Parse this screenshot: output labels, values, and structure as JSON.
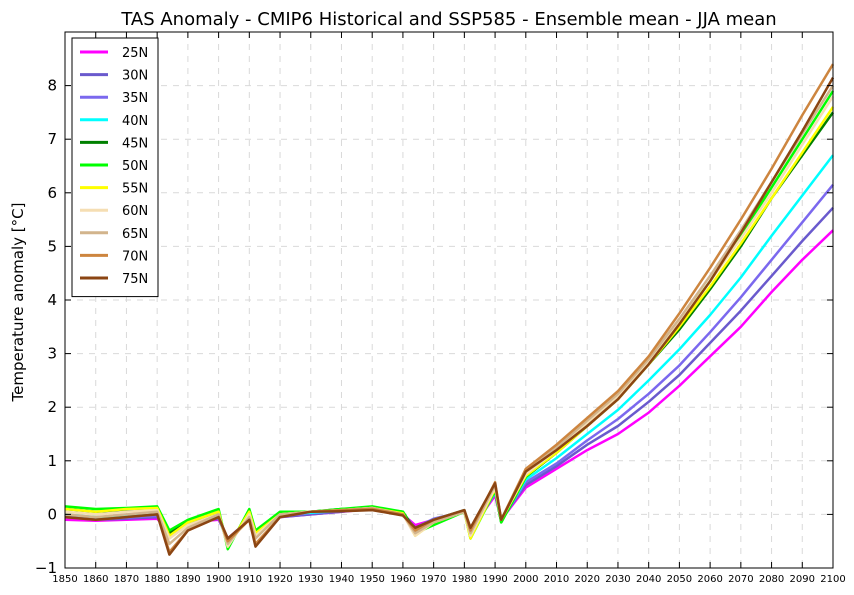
{
  "chart_data": {
    "type": "line",
    "title": "TAS Anomaly - CMIP6 Historical and SSP585 - Ensemble mean - JJA mean",
    "xlabel": "",
    "ylabel": "Temperature anomaly [°C]",
    "xlim": [
      1850,
      2100
    ],
    "ylim": [
      -1,
      9
    ],
    "x_ticks": [
      1850,
      1860,
      1870,
      1880,
      1890,
      1900,
      1910,
      1920,
      1930,
      1940,
      1950,
      1960,
      1970,
      1980,
      1990,
      2000,
      2010,
      2020,
      2030,
      2040,
      2050,
      2060,
      2070,
      2080,
      2090,
      2100
    ],
    "y_ticks": [
      -1,
      0,
      1,
      2,
      3,
      4,
      5,
      6,
      7,
      8
    ],
    "grid": true,
    "legend_position": "top-left",
    "x": [
      1850,
      1860,
      1870,
      1880,
      1884,
      1890,
      1900,
      1903,
      1910,
      1912,
      1920,
      1930,
      1940,
      1950,
      1960,
      1964,
      1970,
      1980,
      1982,
      1990,
      1992,
      2000,
      2010,
      2020,
      2030,
      2040,
      2050,
      2060,
      2070,
      2080,
      2090,
      2100
    ],
    "series": [
      {
        "name": "25N",
        "color": "#ff00ff",
        "values": [
          -0.1,
          -0.12,
          -0.1,
          -0.08,
          -0.35,
          -0.15,
          -0.1,
          -0.45,
          -0.1,
          -0.3,
          -0.05,
          0.0,
          0.05,
          0.1,
          0.0,
          -0.2,
          -0.1,
          0.05,
          -0.3,
          0.35,
          -0.1,
          0.5,
          0.85,
          1.2,
          1.5,
          1.9,
          2.4,
          2.95,
          3.5,
          4.15,
          4.75,
          5.3
        ]
      },
      {
        "name": "30N",
        "color": "#6a5acd",
        "values": [
          -0.05,
          -0.1,
          -0.08,
          -0.05,
          -0.35,
          -0.15,
          -0.08,
          -0.45,
          -0.1,
          -0.35,
          -0.05,
          0.0,
          0.05,
          0.12,
          0.0,
          -0.25,
          -0.1,
          0.05,
          -0.35,
          0.4,
          -0.1,
          0.55,
          0.9,
          1.3,
          1.65,
          2.1,
          2.6,
          3.2,
          3.8,
          4.45,
          5.1,
          5.72
        ]
      },
      {
        "name": "35N",
        "color": "#7b68ee",
        "values": [
          -0.03,
          -0.08,
          -0.06,
          -0.03,
          -0.4,
          -0.15,
          -0.06,
          -0.5,
          -0.08,
          -0.35,
          -0.03,
          0.02,
          0.06,
          0.12,
          0.02,
          -0.25,
          -0.08,
          0.06,
          -0.35,
          0.4,
          -0.12,
          0.6,
          0.95,
          1.38,
          1.78,
          2.25,
          2.78,
          3.4,
          4.05,
          4.75,
          5.45,
          6.15
        ]
      },
      {
        "name": "40N",
        "color": "#00ffff",
        "values": [
          0.0,
          -0.05,
          -0.04,
          0.0,
          -0.4,
          -0.2,
          -0.05,
          -0.55,
          -0.05,
          -0.4,
          0.0,
          0.03,
          0.07,
          0.12,
          0.03,
          -0.3,
          -0.1,
          0.08,
          -0.35,
          0.42,
          -0.12,
          0.65,
          1.05,
          1.5,
          1.95,
          2.5,
          3.08,
          3.72,
          4.42,
          5.2,
          5.95,
          6.7
        ]
      },
      {
        "name": "45N",
        "color": "#008000",
        "values": [
          0.1,
          0.05,
          0.08,
          0.1,
          -0.35,
          -0.15,
          0.05,
          -0.6,
          0.05,
          -0.35,
          0.02,
          0.05,
          0.1,
          0.12,
          0.05,
          -0.3,
          -0.15,
          0.05,
          -0.4,
          0.45,
          -0.15,
          0.7,
          1.15,
          1.65,
          2.15,
          2.8,
          3.45,
          4.2,
          5.0,
          5.9,
          6.7,
          7.5
        ]
      },
      {
        "name": "50N",
        "color": "#00ff00",
        "values": [
          0.15,
          0.1,
          0.12,
          0.15,
          -0.3,
          -0.1,
          0.1,
          -0.65,
          0.1,
          -0.3,
          0.05,
          0.05,
          0.1,
          0.15,
          0.05,
          -0.35,
          -0.2,
          0.05,
          -0.45,
          0.45,
          -0.15,
          0.7,
          1.18,
          1.7,
          2.2,
          2.9,
          3.6,
          4.35,
          5.2,
          6.1,
          7.0,
          7.9
        ]
      },
      {
        "name": "55N",
        "color": "#ffff00",
        "values": [
          0.1,
          0.05,
          0.1,
          0.12,
          -0.4,
          -0.15,
          0.05,
          -0.6,
          0.05,
          -0.35,
          0.0,
          0.05,
          0.08,
          0.12,
          0.02,
          -0.4,
          -0.15,
          0.05,
          -0.45,
          0.48,
          -0.1,
          0.72,
          1.15,
          1.65,
          2.15,
          2.8,
          3.5,
          4.25,
          5.05,
          5.9,
          6.75,
          7.6
        ]
      },
      {
        "name": "60N",
        "color": "#f5deb3",
        "values": [
          0.05,
          0.0,
          0.05,
          0.08,
          -0.45,
          -0.2,
          0.0,
          -0.6,
          0.0,
          -0.4,
          0.0,
          0.05,
          0.08,
          0.12,
          0.0,
          -0.4,
          -0.15,
          0.05,
          -0.4,
          0.5,
          -0.1,
          0.75,
          1.2,
          1.7,
          2.2,
          2.85,
          3.6,
          4.35,
          5.15,
          6.0,
          6.9,
          7.8
        ]
      },
      {
        "name": "65N",
        "color": "#d2b48c",
        "values": [
          0.0,
          -0.05,
          0.0,
          0.05,
          -0.55,
          -0.25,
          0.0,
          -0.55,
          -0.05,
          -0.45,
          0.0,
          0.05,
          0.08,
          0.12,
          0.0,
          -0.35,
          -0.15,
          0.05,
          -0.35,
          0.55,
          -0.1,
          0.8,
          1.25,
          1.75,
          2.25,
          2.9,
          3.65,
          4.45,
          5.3,
          6.2,
          7.1,
          8.0
        ]
      },
      {
        "name": "70N",
        "color": "#cd853f",
        "values": [
          -0.05,
          -0.1,
          -0.05,
          0.0,
          -0.7,
          -0.3,
          -0.05,
          -0.5,
          -0.1,
          -0.55,
          -0.05,
          0.05,
          0.08,
          0.1,
          0.0,
          -0.3,
          -0.1,
          0.08,
          -0.3,
          0.6,
          -0.1,
          0.85,
          1.3,
          1.8,
          2.3,
          2.95,
          3.75,
          4.6,
          5.5,
          6.45,
          7.45,
          8.4
        ]
      },
      {
        "name": "75N",
        "color": "#8b4513",
        "values": [
          -0.05,
          -0.1,
          -0.05,
          0.0,
          -0.75,
          -0.3,
          -0.05,
          -0.45,
          -0.1,
          -0.6,
          -0.05,
          0.05,
          0.06,
          0.08,
          -0.02,
          -0.25,
          -0.1,
          0.08,
          -0.25,
          0.58,
          -0.1,
          0.8,
          1.2,
          1.65,
          2.15,
          2.8,
          3.55,
          4.35,
          5.25,
          6.2,
          7.15,
          8.15
        ]
      }
    ]
  }
}
